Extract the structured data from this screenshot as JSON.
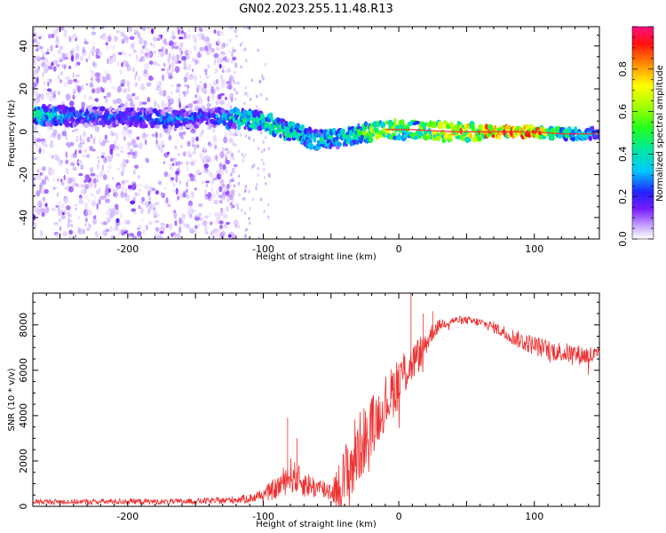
{
  "title": "GN02.2023.255.11.48.R13",
  "chart_data": [
    {
      "type": "heatmap",
      "name": "spectrogram",
      "xlabel": "Height of straight line (km)",
      "ylabel": "Frequency (Hz)",
      "xlim": [
        -270,
        148
      ],
      "ylim": [
        -50,
        49
      ],
      "xticks": [
        -200,
        -100,
        0,
        100
      ],
      "yticks": [
        -40,
        -20,
        0,
        20,
        40
      ],
      "xtick_labels": [
        "-200",
        "-100",
        "0",
        "100"
      ],
      "ytick_labels": [
        "-40",
        "-20",
        "0",
        "20",
        "40"
      ],
      "colorbar": {
        "label": "Normalized spectral amplitude",
        "range": [
          0,
          1
        ],
        "ticks": [
          0.0,
          0.2,
          0.4,
          0.6,
          0.8
        ],
        "tick_labels": [
          "0.0",
          "0.2",
          "0.4",
          "0.6",
          "0.8"
        ]
      },
      "ridge": [
        {
          "x": -265,
          "f": 8,
          "amp": 0.45
        },
        {
          "x": -240,
          "f": 7,
          "amp": 0.3
        },
        {
          "x": -200,
          "f": 7,
          "amp": 0.28
        },
        {
          "x": -170,
          "f": 6,
          "amp": 0.32
        },
        {
          "x": -140,
          "f": 7,
          "amp": 0.25
        },
        {
          "x": -120,
          "f": 6,
          "amp": 0.45
        },
        {
          "x": -100,
          "f": 5,
          "amp": 0.5
        },
        {
          "x": -80,
          "f": 0,
          "amp": 0.5
        },
        {
          "x": -60,
          "f": -4,
          "amp": 0.45
        },
        {
          "x": -45,
          "f": -3,
          "amp": 0.45
        },
        {
          "x": -30,
          "f": -1,
          "amp": 0.5
        },
        {
          "x": -10,
          "f": 1,
          "amp": 0.75
        },
        {
          "x": 10,
          "f": 1,
          "amp": 0.6
        },
        {
          "x": 40,
          "f": 0,
          "amp": 0.75
        },
        {
          "x": 70,
          "f": 0,
          "amp": 0.9
        },
        {
          "x": 100,
          "f": 0,
          "amp": 0.95
        },
        {
          "x": 120,
          "f": -1,
          "amp": 0.5
        },
        {
          "x": 145,
          "f": -1,
          "amp": 0.35
        }
      ]
    },
    {
      "type": "line",
      "name": "snr",
      "xlabel": "Height of straight line (km)",
      "ylabel": "SNR (10 * v/v)",
      "xlim": [
        -270,
        148
      ],
      "ylim": [
        0,
        9400
      ],
      "xticks": [
        -200,
        -100,
        0,
        100
      ],
      "yticks": [
        0,
        2000,
        4000,
        6000,
        8000
      ],
      "xtick_labels": [
        "-200",
        "-100",
        "0",
        "100"
      ],
      "ytick_labels": [
        "0",
        "2000",
        "4000",
        "6000",
        "8000"
      ],
      "color": "#ee3030",
      "envelope": {
        "x": [
          -270,
          -230,
          -200,
          -170,
          -130,
          -110,
          -100,
          -90,
          -80,
          -75,
          -70,
          -60,
          -50,
          -45,
          -40,
          -35,
          -30,
          -25,
          -20,
          -15,
          -10,
          -5,
          0,
          5,
          10,
          15,
          20,
          25,
          30,
          40,
          50,
          60,
          70,
          80,
          90,
          100,
          110,
          120,
          130,
          148
        ],
        "y": [
          200,
          200,
          220,
          200,
          250,
          350,
          500,
          800,
          1400,
          1200,
          1000,
          800,
          700,
          800,
          1200,
          1800,
          2500,
          3000,
          3600,
          4000,
          4600,
          5000,
          5600,
          6000,
          6300,
          6700,
          7200,
          7700,
          8000,
          8200,
          8200,
          8100,
          7900,
          7600,
          7300,
          7100,
          6900,
          6800,
          6700,
          6600
        ],
        "noise": [
          120,
          120,
          130,
          120,
          150,
          200,
          300,
          500,
          800,
          700,
          600,
          500,
          500,
          1000,
          1500,
          2000,
          1600,
          1500,
          1300,
          1200,
          1200,
          1200,
          1300,
          1100,
          900,
          800,
          600,
          400,
          250,
          180,
          180,
          200,
          250,
          350,
          400,
          450,
          450,
          450,
          450,
          450
        ]
      },
      "peaks": [
        {
          "x": -82,
          "y": 3900
        },
        {
          "x": -75,
          "y": 3000
        },
        {
          "x": 9,
          "y": 9400
        },
        {
          "x": 18,
          "y": 8500
        },
        {
          "x": 25,
          "y": 8600
        }
      ]
    }
  ]
}
